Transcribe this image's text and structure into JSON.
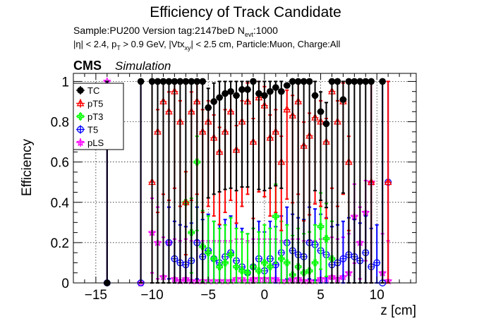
{
  "chart_data": {
    "type": "scatter",
    "title": "Efficiency of Track Candidate",
    "info_line1": "Sample:PU200   Version tag:2147beD  N",
    "info_line1_sub": "evt",
    "info_line1_tail": ":1000",
    "info_line2_a": "|η| < 2.4, p",
    "info_line2_sub1": "T",
    "info_line2_b": " > 0.9 GeV, |Vtx",
    "info_line2_sub2": "xy",
    "info_line2_c": "| < 2.5 cm, Particle:Muon, Charge:All",
    "cms_label": "CMS",
    "simulation_label": "Simulation",
    "xlabel": "z [cm]",
    "ylabel": "Efficiency",
    "xlim": [
      -17,
      13.5
    ],
    "ylim": [
      0,
      1.04
    ],
    "xticks": [
      -15,
      -10,
      -5,
      0,
      5,
      10
    ],
    "xtick_labels": [
      "−15",
      "−10",
      "−5",
      "0",
      "5",
      "10"
    ],
    "yticks": [
      0,
      0.2,
      0.4,
      0.6,
      0.8,
      1
    ],
    "ytick_labels": [
      "0",
      "0.2",
      "0.4",
      "0.6",
      "0.8",
      "1"
    ],
    "grid": true,
    "legend_position": "top-left",
    "series": [
      {
        "name": "TC",
        "color": "#000000",
        "marker": "filled-circle",
        "x": [
          -14,
          -11,
          -10,
          -9.5,
          -9,
          -8.5,
          -8,
          -7.5,
          -7,
          -6.5,
          -6,
          -5.5,
          -5,
          -4.5,
          -4,
          -3.5,
          -3,
          -2.5,
          -2,
          -1.5,
          -1,
          -0.5,
          0,
          0.5,
          1,
          1.5,
          2,
          2.5,
          3,
          3.5,
          4,
          4.5,
          5,
          5.5,
          6,
          6.5,
          7,
          7.5,
          8,
          8.5,
          9,
          9.5,
          10.5
        ],
        "y": [
          0,
          1,
          1,
          1,
          1,
          1,
          1,
          1,
          1,
          1,
          1,
          1,
          0.87,
          0.9,
          0.92,
          0.94,
          0.95,
          0.93,
          0.96,
          0.96,
          1,
          0.94,
          0.93,
          0.95,
          0.97,
          0.95,
          0.98,
          1,
          1,
          1,
          1,
          0.93,
          0.85,
          0.79,
          1,
          1,
          0.91,
          1,
          1,
          1,
          1,
          1,
          1
        ]
      },
      {
        "name": "pT5",
        "color": "#ff0000",
        "marker": "open-triangle",
        "x": [
          -10,
          -9.5,
          -9,
          -8.5,
          -8,
          -7.5,
          -7,
          -6.5,
          -6,
          -5.5,
          -5,
          -4.5,
          -4,
          -3.5,
          -3,
          -2.5,
          -2,
          -1.5,
          -1,
          -0.5,
          0,
          0.5,
          1,
          1.5,
          2,
          2.5,
          3,
          3.5,
          4,
          4.5,
          5,
          5.5,
          6,
          6.5,
          7,
          7.5,
          9.5,
          11
        ],
        "y": [
          0.5,
          0.75,
          0.9,
          0.85,
          0.95,
          0.8,
          0.4,
          0.85,
          0.9,
          0.75,
          0.8,
          0.72,
          0.65,
          0.75,
          0.85,
          0.66,
          0.8,
          0.9,
          0.7,
          0.92,
          0.88,
          0.72,
          0.75,
          0.6,
          0.86,
          0.83,
          0.9,
          0.68,
          0.73,
          0.82,
          0.8,
          0.7,
          0.95,
          0.8,
          0.9,
          0.6,
          0.5,
          0.5
        ]
      },
      {
        "name": "pT3",
        "color": "#00ff00",
        "marker": "open-cross",
        "x": [
          -7,
          -6.5,
          -6,
          -5.5,
          -5,
          -4.5,
          -4,
          -3.5,
          -3,
          -2.5,
          -2,
          -1.5,
          -1,
          -0.5,
          0,
          0.5,
          1,
          1.5,
          2,
          2.5,
          3,
          3.5,
          4,
          4.5,
          5,
          5.5,
          6
        ],
        "y": [
          0.4,
          0.25,
          0.6,
          0.18,
          0.15,
          0.12,
          0.08,
          0.1,
          0.14,
          0.08,
          0.06,
          0.05,
          0.08,
          0.06,
          0.1,
          0.08,
          0.33,
          0.12,
          0.1,
          0.04,
          0.08,
          0.05,
          0.06,
          0.1,
          0.28,
          0.22,
          0.12
        ]
      },
      {
        "name": "T5",
        "color": "#0000ff",
        "marker": "open-circle",
        "x": [
          -14,
          -11,
          -8.5,
          -8,
          -7.5,
          -7,
          -6.5,
          -6,
          -5.5,
          -5,
          -4.5,
          -4,
          -3.5,
          -3,
          -2.5,
          -2,
          -1.5,
          -1,
          -0.5,
          0,
          0.5,
          1,
          1.5,
          2,
          2.5,
          3,
          3.5,
          4,
          4.5,
          5,
          5.5,
          6,
          6.5,
          7,
          7.5,
          8,
          8.5,
          9,
          9.5,
          10,
          10.5,
          11
        ],
        "y": [
          0,
          0,
          0.2,
          0.12,
          0.1,
          0.09,
          0.11,
          0.2,
          0.13,
          0.16,
          0.12,
          0.1,
          0.13,
          0.15,
          0.11,
          0.08,
          0.05,
          0.08,
          0.12,
          0.06,
          0.12,
          0.09,
          0.15,
          0.2,
          0.16,
          0.14,
          0.13,
          0.2,
          0.19,
          0.16,
          0.14,
          0.09,
          0.1,
          0.12,
          0.14,
          0.13,
          0.11,
          0.15,
          0.08,
          0.1,
          0,
          0.5
        ]
      },
      {
        "name": "pLS",
        "color": "#ff00ff",
        "marker": "open-star",
        "x": [
          -14,
          -11,
          -10,
          -9.5,
          -9,
          -8.5,
          -8,
          -7.5,
          -7,
          -6.5,
          -6,
          -5.5,
          -5,
          -4.5,
          -4,
          -3.5,
          -3,
          -2.5,
          -2,
          -1.5,
          -1,
          -0.5,
          0,
          0.5,
          1,
          1.5,
          2,
          2.5,
          3,
          3.5,
          4,
          4.5,
          5,
          5.5,
          6,
          6.5,
          7,
          7.5,
          8,
          8.5,
          9,
          9.5,
          10.5,
          11
        ],
        "y": [
          1,
          0,
          0.25,
          0.2,
          0.03,
          0.2,
          0.02,
          0.01,
          0.02,
          0.01,
          0.01,
          0.01,
          0.01,
          0.01,
          0.01,
          0.01,
          0.01,
          0.02,
          0.02,
          0.01,
          0.02,
          0.02,
          0.02,
          0.02,
          0.02,
          0.01,
          0.01,
          0.02,
          0.02,
          0.01,
          0.01,
          0.01,
          0.02,
          0.02,
          0.03,
          0.02,
          0.03,
          0.05,
          0.33,
          0.2,
          0.35,
          0.5,
          0.05,
          0.01
        ]
      }
    ]
  }
}
